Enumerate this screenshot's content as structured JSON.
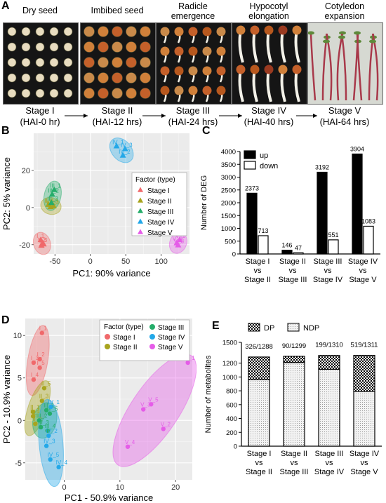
{
  "panelA": {
    "label": "A",
    "stages": [
      {
        "title": "Dry  seed",
        "name": "Stage I",
        "time": "(HAI-0 hr)"
      },
      {
        "title": "Imbibed  seed",
        "name": "Stage II",
        "time": "(HAI-12 hrs)"
      },
      {
        "title": "Radicle emergence",
        "name": "Stage III",
        "time": "(HAI-24 hrs)"
      },
      {
        "title": "Hypocotyl elongation",
        "name": "Stage IV",
        "time": "(HAI-40 hrs)"
      },
      {
        "title": "Cotyledon expansion",
        "name": "Stage V",
        "time": "(HAI-64 hrs)"
      }
    ]
  },
  "panelB": {
    "label": "B",
    "xlabel": "PC1: 90% variance",
    "ylabel": "PC2: 5% variance",
    "legend_title": "Factor (type)",
    "colors": [
      "#f0696b",
      "#a8a41e",
      "#25ad6a",
      "#23a8e8",
      "#e55ce8"
    ]
  },
  "panelC": {
    "label": "C",
    "ylabel": "Number of DEG"
  },
  "panelD": {
    "label": "D",
    "xlabel": "PC1 - 50.9% variance",
    "ylabel": "PC2 - 10.9% variance",
    "legend_title": "Factor (type)"
  },
  "panelE": {
    "label": "E",
    "ylabel": "Number of metabolites"
  },
  "chart_data": [
    {
      "type": "scatter",
      "panel": "B",
      "xlabel": "PC1: 90% variance",
      "ylabel": "PC2: 5% variance",
      "xlim": [
        -80,
        140
      ],
      "ylim": [
        -25,
        40
      ],
      "xticks": [
        -50,
        0,
        50,
        100
      ],
      "yticks": [
        -20,
        0,
        20
      ],
      "grid": true,
      "legend": "right",
      "legend_title": "Factor (type)",
      "series": [
        {
          "name": "Stage I",
          "color": "#f0696b",
          "points": [
            {
              "x": -70,
              "y": -17.5,
              "label": "I_1"
            },
            {
              "x": -68,
              "y": -19.5,
              "label": "I_2"
            },
            {
              "x": -66,
              "y": -19.8,
              "label": "I_3"
            },
            {
              "x": -69,
              "y": -20.5,
              "label": ""
            }
          ]
        },
        {
          "name": "Stage II",
          "color": "#a8a41e",
          "points": [
            {
              "x": -59,
              "y": 1.5,
              "label": "II_1"
            },
            {
              "x": -56,
              "y": 0.3,
              "label": "II_2"
            },
            {
              "x": -52,
              "y": 0.8,
              "label": "II_3"
            }
          ]
        },
        {
          "name": "Stage III",
          "color": "#25ad6a",
          "points": [
            {
              "x": -51,
              "y": 9.5,
              "label": "III_1"
            },
            {
              "x": -54,
              "y": 7.0,
              "label": "III_2"
            },
            {
              "x": -55,
              "y": 2.5,
              "label": "III_3"
            }
          ]
        },
        {
          "name": "Stage IV",
          "color": "#23a8e8",
          "points": [
            {
              "x": 37,
              "y": 33,
              "label": "IV_1"
            },
            {
              "x": 49,
              "y": 31.5,
              "label": "IV_3"
            },
            {
              "x": 46,
              "y": 28,
              "label": "IV_2"
            }
          ]
        },
        {
          "name": "Stage V",
          "color": "#e55ce8",
          "points": [
            {
              "x": 126,
              "y": -17.5,
              "label": "V_1"
            },
            {
              "x": 122,
              "y": -19.2,
              "label": "V_2"
            },
            {
              "x": 124,
              "y": -20.3,
              "label": "V_3"
            }
          ]
        }
      ]
    },
    {
      "type": "bar",
      "panel": "C",
      "ylabel": "Number of DEG",
      "ylim": [
        0,
        4000
      ],
      "yticks": [
        0,
        500,
        1000,
        1500,
        2000,
        2500,
        3000,
        3500,
        4000
      ],
      "legend": "top-left",
      "categories": [
        "Stage I\nvs\nStage II",
        "Stage II\nvs\nStage III",
        "Stage III\nvs\nStage IV",
        "Stage IV\nvs\nStage V"
      ],
      "series": [
        {
          "name": "up",
          "color": "#000000",
          "values": [
            2373,
            146,
            3192,
            3904
          ]
        },
        {
          "name": "down",
          "color": "#ffffff",
          "values": [
            713,
            47,
            551,
            1083
          ]
        }
      ]
    },
    {
      "type": "scatter",
      "panel": "D",
      "xlabel": "PC1 - 50.9% variance",
      "ylabel": "PC2 - 10.9% variance",
      "xlim": [
        -7,
        23
      ],
      "ylim": [
        -7,
        12
      ],
      "xticks": [
        0,
        10,
        20
      ],
      "yticks": [
        -5,
        0,
        5,
        10
      ],
      "grid": true,
      "legend": "top",
      "legend_title": "Factor (type)",
      "series": [
        {
          "name": "Stage I",
          "color": "#f0696b",
          "points": [
            {
              "x": -4.0,
              "y": 10.3,
              "label": "I_1"
            },
            {
              "x": -4.4,
              "y": 7.2,
              "label": "I_2"
            },
            {
              "x": -5.5,
              "y": 6.8,
              "label": "I_3"
            },
            {
              "x": -5.5,
              "y": 4.8,
              "label": "I_4"
            },
            {
              "x": -4.4,
              "y": 6.2,
              "label": "I_5"
            }
          ]
        },
        {
          "name": "Stage II",
          "color": "#a8a41e",
          "points": [
            {
              "x": -3.6,
              "y": 3.8,
              "label": "II_5"
            },
            {
              "x": -4.0,
              "y": 2.3,
              "label": "II_3"
            },
            {
              "x": -5.6,
              "y": 1.0,
              "label": "II_1"
            },
            {
              "x": -5.6,
              "y": 0.5,
              "label": "II_4"
            },
            {
              "x": -5.2,
              "y": -0.4,
              "label": "II_2"
            }
          ]
        },
        {
          "name": "Stage III",
          "color": "#25ad6a",
          "points": [
            {
              "x": -3.2,
              "y": 1.2,
              "label": "III_1"
            },
            {
              "x": -2.6,
              "y": 0.8,
              "label": "III_5"
            },
            {
              "x": -4.5,
              "y": 0.0,
              "label": "III_2"
            },
            {
              "x": -4.2,
              "y": -0.8,
              "label": "III_3"
            },
            {
              "x": -3.0,
              "y": -1.2,
              "label": "III_4"
            }
          ]
        },
        {
          "name": "Stage IV",
          "color": "#23a8e8",
          "points": [
            {
              "x": -2.4,
              "y": 1.6,
              "label": "IV_1"
            },
            {
              "x": -2.8,
              "y": -1.8,
              "label": "IV_2"
            },
            {
              "x": -3.2,
              "y": -3.0,
              "label": "IV_3"
            },
            {
              "x": -2.5,
              "y": -4.6,
              "label": "IV_5"
            },
            {
              "x": -1.0,
              "y": -5.5,
              "label": "IV_4"
            }
          ]
        },
        {
          "name": "Stage V",
          "color": "#e55ce8",
          "points": [
            {
              "x": 22.2,
              "y": 6.8,
              "label": "V_1"
            },
            {
              "x": 15.6,
              "y": 1.9,
              "label": "V_5"
            },
            {
              "x": 14.2,
              "y": 1.3,
              "label": "V_3"
            },
            {
              "x": 17.8,
              "y": -1.0,
              "label": "V_2"
            },
            {
              "x": 11.4,
              "y": -3.1,
              "label": "V_4"
            }
          ]
        }
      ]
    },
    {
      "type": "bar",
      "panel": "E",
      "stacked": true,
      "ylabel": "Number of metabolites",
      "ylim": [
        0,
        1500
      ],
      "yticks": [
        0,
        200,
        400,
        600,
        800,
        1000,
        1200,
        1500
      ],
      "legend": "top",
      "categories": [
        "Stage I\nvs\nStage II",
        "Stage II\nvs\nStage III",
        "Stage III\nvs\nStage IV",
        "Stage IV\nvs\nStage V"
      ],
      "annotations": [
        "326/1288",
        "90/1299",
        "199/1310",
        "519/1311"
      ],
      "series": [
        {
          "name": "NDP",
          "pattern": "light-dots",
          "values": [
            962,
            1209,
            1111,
            792
          ]
        },
        {
          "name": "DP",
          "pattern": "checker",
          "values": [
            326,
            90,
            199,
            519
          ]
        }
      ]
    }
  ]
}
